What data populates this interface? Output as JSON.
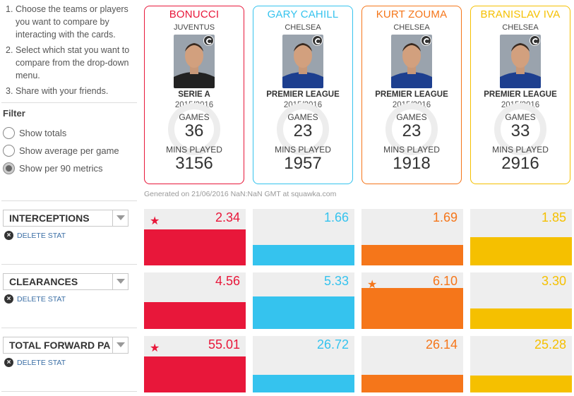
{
  "instructions": [
    {
      "num": "1.",
      "text": "Choose the teams or players you want to compare by interacting with the cards."
    },
    {
      "num": "2.",
      "text": "Select which stat you want to compare from the drop-down menu."
    },
    {
      "num": "3.",
      "text": "Share with your friends."
    }
  ],
  "filter": {
    "title": "Filter",
    "options": [
      {
        "label": "Show totals",
        "checked": false
      },
      {
        "label": "Show average per game",
        "checked": false
      },
      {
        "label": "Show per 90 metrics",
        "checked": true
      }
    ]
  },
  "players": [
    {
      "name": "BONUCCI",
      "club": "JUVENTUS",
      "league": "SERIE A",
      "season": "2015/2016",
      "games_label": "GAMES",
      "games": "36",
      "mins_label": "MINS PLAYED",
      "mins": "3156",
      "color": "#e8173a",
      "shirt": "#222222"
    },
    {
      "name": "GARY CAHILL",
      "club": "CHELSEA",
      "league": "PREMIER LEAGUE",
      "season": "2015/2016",
      "games_label": "GAMES",
      "games": "23",
      "mins_label": "MINS PLAYED",
      "mins": "1957",
      "color": "#35c3ee",
      "shirt": "#1d3f8f"
    },
    {
      "name": "KURT ZOUMA",
      "club": "CHELSEA",
      "league": "PREMIER LEAGUE",
      "season": "2015/2016",
      "games_label": "GAMES",
      "games": "23",
      "mins_label": "MINS PLAYED",
      "mins": "1918",
      "color": "#f5761a",
      "shirt": "#1d3f8f"
    },
    {
      "name": "BRANISLAV IVA",
      "club": "CHELSEA",
      "league": "PREMIER LEAGUE",
      "season": "2015/2016",
      "games_label": "GAMES",
      "games": "33",
      "mins_label": "MINS PLAYED",
      "mins": "2916",
      "color": "#f5c000",
      "shirt": "#1d3f8f"
    }
  ],
  "generated": "Generated on 21/06/2016 NaN:NaN GMT at squawka.com",
  "stats": [
    {
      "name": "INTERCEPTIONS",
      "delete_label": "DELETE STAT",
      "values": [
        "2.34",
        "1.66",
        "1.69",
        "1.85"
      ],
      "fill": [
        0.64,
        0.36,
        0.36,
        0.5
      ],
      "star": 0
    },
    {
      "name": "CLEARANCES",
      "delete_label": "DELETE STAT",
      "values": [
        "4.56",
        "5.33",
        "6.10",
        "3.30"
      ],
      "fill": [
        0.48,
        0.57,
        0.73,
        0.36
      ],
      "star": 2
    },
    {
      "name": "TOTAL FORWARD PA",
      "delete_label": "DELETE STAT",
      "values": [
        "55.01",
        "26.72",
        "26.14",
        "25.28"
      ],
      "fill": [
        0.64,
        0.31,
        0.31,
        0.3
      ],
      "star": 0
    }
  ],
  "icons": {
    "star": "star-icon",
    "delete": "close-circle-icon",
    "dropdown": "chevron-down-icon",
    "swap": "swap-player-icon"
  }
}
